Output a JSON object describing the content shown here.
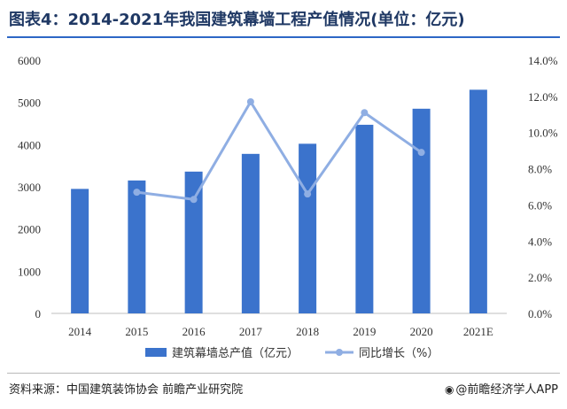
{
  "title": "图表4：2014-2021年我国建筑幕墙工程产值情况(单位：亿元)",
  "source": "资料来源：中国建筑装饰协会 前瞻产业研究院",
  "brand": "@前瞻经济学人APP",
  "brand_icon": "brand-at-icon",
  "colors": {
    "bar": "#3b73cc",
    "line": "#8faee3",
    "title": "#1f3864",
    "axis": "#bfbfbf"
  },
  "chart_data": {
    "type": "bar",
    "categories": [
      "2014",
      "2015",
      "2016",
      "2017",
      "2018",
      "2019",
      "2020",
      "2021E"
    ],
    "series": [
      {
        "name": "建筑幕墙总产值（亿元）",
        "type": "bar",
        "axis": "left",
        "values": [
          2950,
          3150,
          3360,
          3780,
          4020,
          4470,
          4850,
          5300
        ]
      },
      {
        "name": "同比增长（%）",
        "type": "line",
        "axis": "right",
        "values": [
          null,
          6.7,
          6.3,
          11.7,
          6.6,
          11.1,
          8.9,
          null
        ]
      }
    ],
    "left_axis": {
      "min": 0,
      "max": 6000,
      "ticks": [
        "0",
        "1000",
        "2000",
        "3000",
        "4000",
        "5000",
        "6000"
      ]
    },
    "right_axis": {
      "min": 0,
      "max": 14,
      "ticks": [
        "0.0%",
        "2.0%",
        "4.0%",
        "6.0%",
        "8.0%",
        "10.0%",
        "12.0%",
        "14.0%"
      ]
    },
    "legend_position": "bottom",
    "grid": false
  }
}
